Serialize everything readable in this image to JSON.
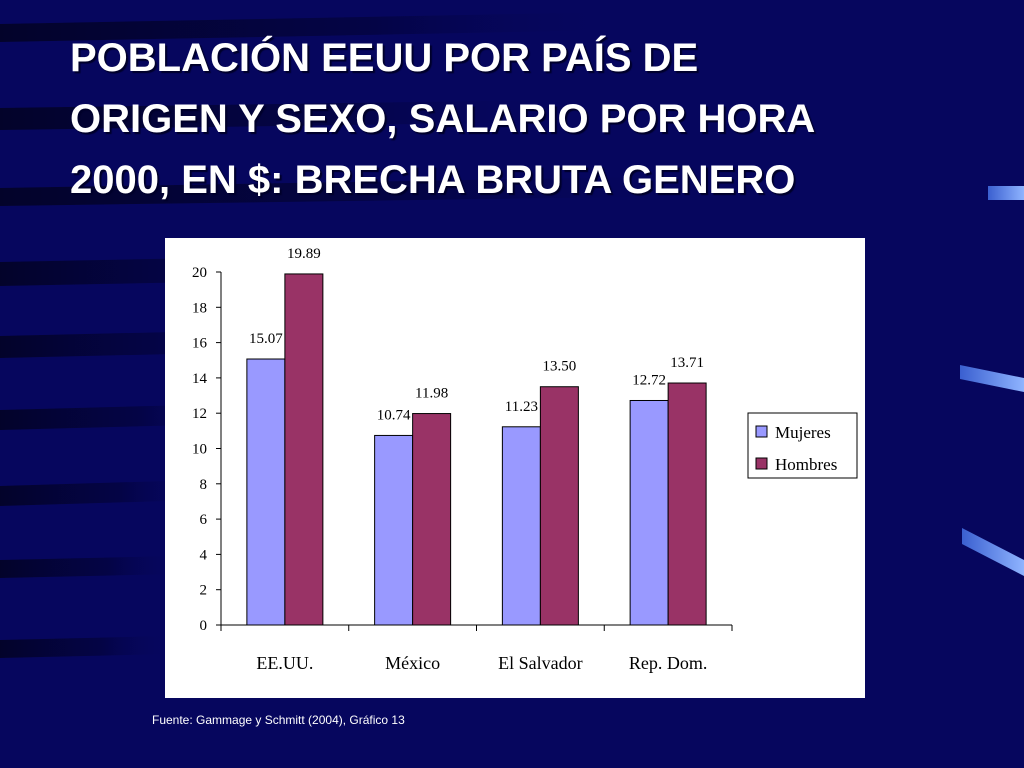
{
  "slide": {
    "title": "POBLACIÓN EEUU POR PAÍS DE\nORIGEN Y SEXO, SALARIO POR HORA\n2000, EN $: BRECHA BRUTA GENERO",
    "source": "Fuente: Gammage y Schmitt (2004), Gráfico 13"
  },
  "colors": {
    "background": "#06065e",
    "mujeres": "#9999ff",
    "hombres": "#993366"
  },
  "chart_data": {
    "type": "bar",
    "categories": [
      "EE.UU.",
      "México",
      "El Salvador",
      "Rep. Dom."
    ],
    "series": [
      {
        "name": "Mujeres",
        "values": [
          15.07,
          10.74,
          11.23,
          12.72
        ],
        "labels": [
          "15.07",
          "10.74",
          "11.23",
          "12.72"
        ]
      },
      {
        "name": "Hombres",
        "values": [
          19.89,
          11.98,
          13.5,
          13.71
        ],
        "labels": [
          "19.89",
          "11.98",
          "13.50",
          "13.71"
        ]
      }
    ],
    "ylim": [
      0,
      20
    ],
    "yticks": [
      "0",
      "2",
      "4",
      "6",
      "8",
      "10",
      "12",
      "14",
      "16",
      "18",
      "20"
    ],
    "grid": false,
    "legend": "right"
  }
}
